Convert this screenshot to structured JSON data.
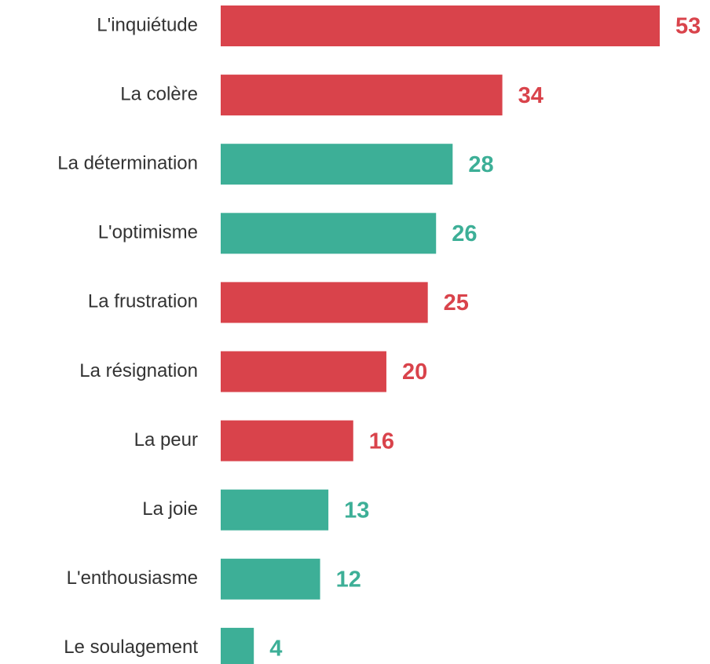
{
  "chart_data": {
    "type": "barh",
    "categories": [
      "L'inquiétude",
      "La colère",
      "La détermination",
      "L'optimisme",
      "La frustration",
      "La résignation",
      "La peur",
      "La joie",
      "L'enthousiasme",
      "Le soulagement"
    ],
    "values": [
      53,
      34,
      28,
      26,
      25,
      20,
      16,
      13,
      12,
      4
    ],
    "colors": [
      "#d9434b",
      "#d9434b",
      "#3daf97",
      "#3daf97",
      "#d9434b",
      "#d9434b",
      "#d9434b",
      "#3daf97",
      "#3daf97",
      "#3daf97"
    ],
    "xlim": [
      0,
      53
    ]
  }
}
